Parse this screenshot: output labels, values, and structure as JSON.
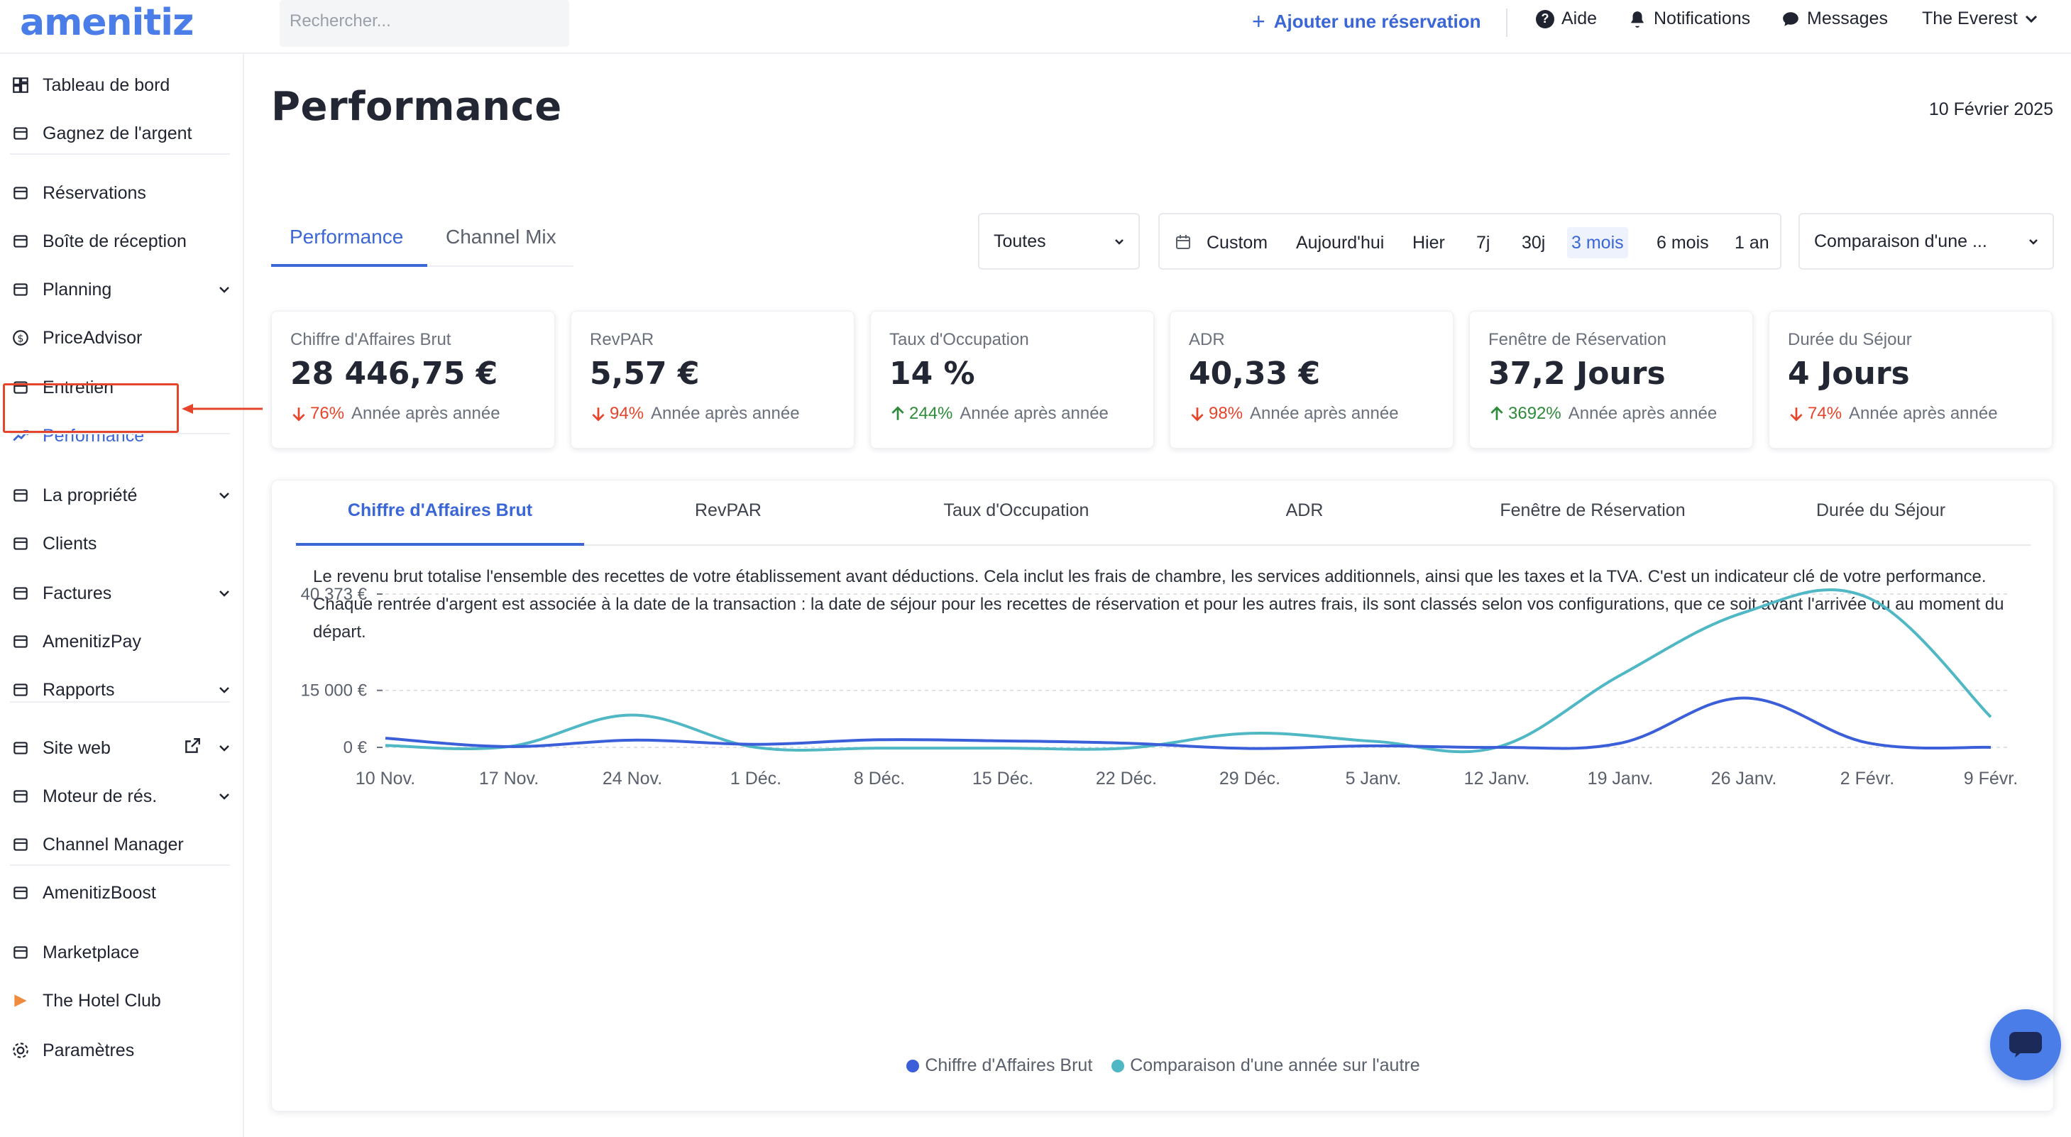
{
  "header": {
    "logo": "amenitiz",
    "search_placeholder": "Rechercher...",
    "add_reservation": "Ajouter une réservation",
    "help": "Aide",
    "notifications": "Notifications",
    "messages": "Messages",
    "property": "The Everest"
  },
  "sidebar": {
    "items": [
      {
        "label": "Tableau de bord",
        "icon": "dashboard-icon"
      },
      {
        "label": "Gagnez de l'argent",
        "icon": "megaphone-icon"
      },
      {
        "label": "Réservations",
        "icon": "suitcase-icon"
      },
      {
        "label": "Boîte de réception",
        "icon": "inbox-icon"
      },
      {
        "label": "Planning",
        "icon": "calendar-icon"
      },
      {
        "label": "PriceAdvisor",
        "icon": "dollar-icon"
      },
      {
        "label": "Entretien",
        "icon": "broom-icon"
      },
      {
        "label": "Performance",
        "icon": "trend-icon"
      },
      {
        "label": "La propriété",
        "icon": "building-icon"
      },
      {
        "label": "Clients",
        "icon": "clients-icon"
      },
      {
        "label": "Factures",
        "icon": "invoice-icon"
      },
      {
        "label": "AmenitizPay",
        "icon": "card-icon"
      },
      {
        "label": "Rapports",
        "icon": "report-icon"
      },
      {
        "label": "Site web",
        "icon": "website-icon"
      },
      {
        "label": "Moteur de rés.",
        "icon": "engine-icon"
      },
      {
        "label": "Channel Manager",
        "icon": "channel-icon"
      },
      {
        "label": "AmenitizBoost",
        "icon": "boost-icon"
      },
      {
        "label": "Marketplace",
        "icon": "marketplace-icon"
      },
      {
        "label": "The Hotel Club",
        "icon": "hotel-club-icon"
      },
      {
        "label": "Paramètres",
        "icon": "gear-icon"
      }
    ]
  },
  "main": {
    "title": "Performance",
    "date": "10 Février 2025",
    "tabs": [
      "Performance",
      "Channel Mix"
    ],
    "filter_all": "Toutes",
    "periods": [
      "Custom",
      "Aujourd'hui",
      "Hier",
      "7j",
      "30j",
      "3 mois",
      "6 mois",
      "1 an"
    ],
    "active_period": "3 mois",
    "comparison": "Comparaison d'une ..."
  },
  "kpis": [
    {
      "label": "Chiffre d'Affaires Brut",
      "value": "28 446,75 €",
      "pct": "76%",
      "direction": "down",
      "suffix": "Année après année"
    },
    {
      "label": "RevPAR",
      "value": "5,57 €",
      "pct": "94%",
      "direction": "down",
      "suffix": "Année après année"
    },
    {
      "label": "Taux d'Occupation",
      "value": "14 %",
      "pct": "244%",
      "direction": "up",
      "suffix": "Année après année"
    },
    {
      "label": "ADR",
      "value": "40,33 €",
      "pct": "98%",
      "direction": "down",
      "suffix": "Année après année"
    },
    {
      "label": "Fenêtre de Réservation",
      "value": "37,2 Jours",
      "pct": "3692%",
      "direction": "up",
      "suffix": "Année après année"
    },
    {
      "label": "Durée du Séjour",
      "value": "4 Jours",
      "pct": "74%",
      "direction": "down",
      "suffix": "Année après année"
    }
  ],
  "metric_tabs": [
    "Chiffre d'Affaires Brut",
    "RevPAR",
    "Taux d'Occupation",
    "ADR",
    "Fenêtre de Réservation",
    "Durée du Séjour"
  ],
  "description": "Le revenu brut totalise l'ensemble des recettes de votre établissement avant déductions. Cela inclut les frais de chambre, les services additionnels, ainsi que les taxes et la TVA. C'est un indicateur clé de votre performance. Chaque rentrée d'argent est associée à la date de la transaction : la date de séjour pour les recettes de réservation et pour les autres frais, ils sont classés selon vos configurations, que ce soit avant l'arrivée ou au moment du départ.",
  "colors": {
    "accent": "#3b66d6",
    "series_current": "#3b5fd9",
    "series_comparison": "#4fb8c4",
    "down": "#e4452b",
    "up": "#2e8b3a"
  },
  "chart_data": {
    "type": "line",
    "x": [
      "10 Nov.",
      "17 Nov.",
      "24 Nov.",
      "1 Déc.",
      "8 Déc.",
      "15 Déc.",
      "22 Déc.",
      "29 Déc.",
      "5 Janv.",
      "12 Janv.",
      "19 Janv.",
      "26 Janv.",
      "2 Févr.",
      "9 Févr."
    ],
    "y_ticks": [
      {
        "value": 0,
        "label": "0 €"
      },
      {
        "value": 15000,
        "label": "15 000 €"
      },
      {
        "value": 40373,
        "label": "40 373 €"
      }
    ],
    "ylim": [
      0,
      40373
    ],
    "series": [
      {
        "name": "Chiffre d'Affaires Brut",
        "values": [
          2400,
          200,
          1900,
          800,
          2000,
          1700,
          1100,
          -300,
          400,
          0,
          1100,
          13000,
          1200,
          0
        ]
      },
      {
        "name": "Comparaison d'une année sur l'autre",
        "values": [
          500,
          200,
          8500,
          0,
          -200,
          -200,
          -200,
          3700,
          1600,
          0,
          19000,
          35500,
          39500,
          8000
        ]
      }
    ],
    "grid": true,
    "legend_position": "bottom"
  }
}
